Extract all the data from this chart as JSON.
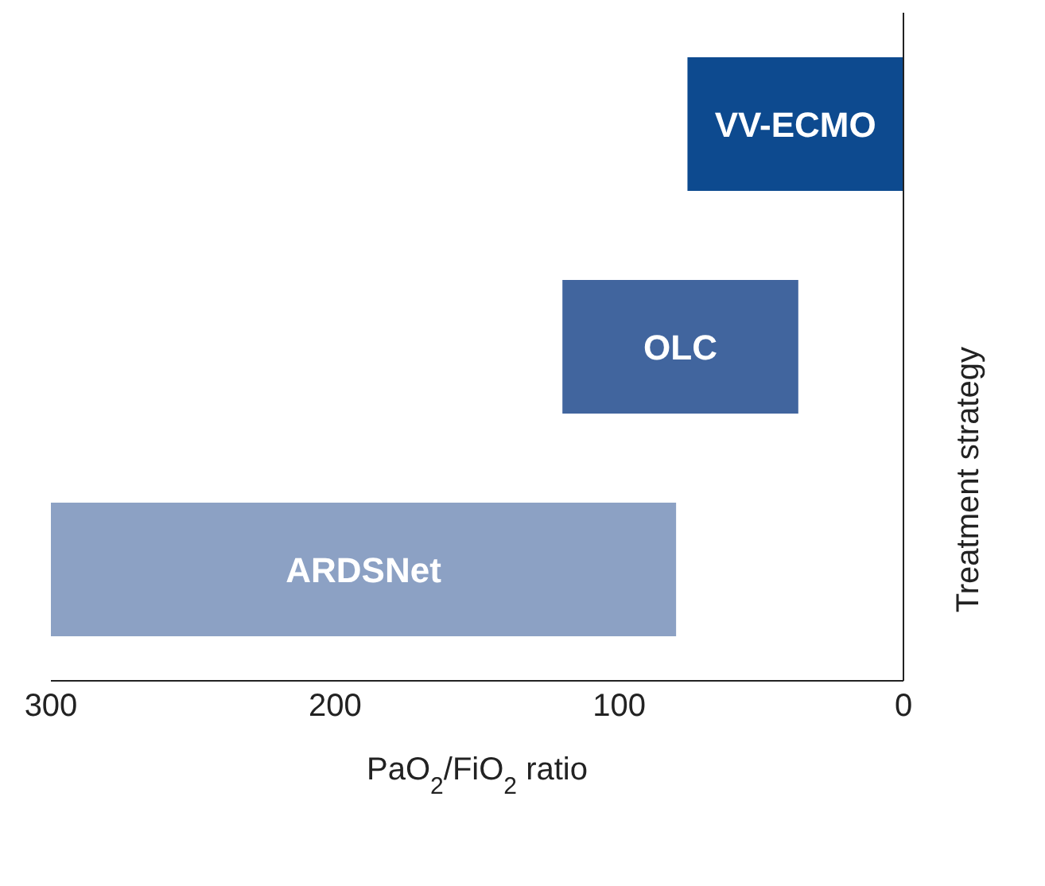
{
  "chart_data": {
    "type": "bar",
    "orientation": "horizontal",
    "categories": [
      "VV-ECMO",
      "OLC",
      "ARDSNet"
    ],
    "base": [
      0,
      37,
      80
    ],
    "values": [
      76,
      83,
      220
    ],
    "colors": [
      "#0d4a8f",
      "#41659e",
      "#8ca1c4"
    ],
    "xlim": [
      300,
      0
    ],
    "xticks": [
      300,
      200,
      100,
      0
    ],
    "xlabel": "PaO$_{2}$/FiO$_{2}$ ratio",
    "ylabel": "Treatment strategy",
    "tick_labels": "x",
    "grid": false
  }
}
